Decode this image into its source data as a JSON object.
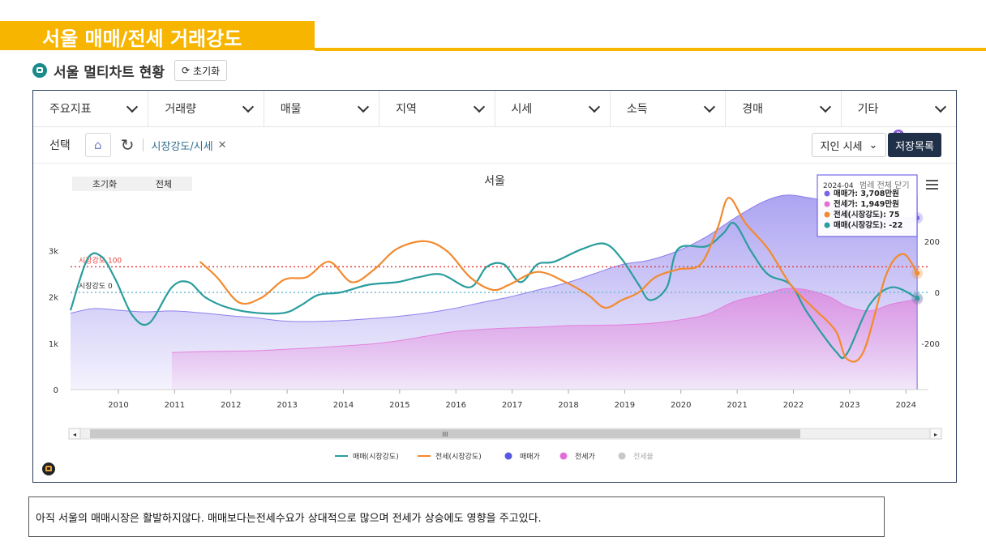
{
  "header": {
    "title": "서울 매매/전세 거래강도"
  },
  "subheader": {
    "title": "서울 멀티차트 현황",
    "reset_label": "초기화"
  },
  "filter_tabs": [
    "주요지표",
    "거래량",
    "매물",
    "지역",
    "시세",
    "소득",
    "경매",
    "기타"
  ],
  "toolbar": {
    "select_label": "선택",
    "active_filter": "시장강도/시세",
    "price_select": "지인 시세",
    "badge": "P",
    "save_label": "저장목록"
  },
  "chart_controls": {
    "reset": "초기화",
    "all": "전체"
  },
  "tooltip": {
    "date": "2024-04",
    "legend_toggle": "범례 전체 닫기",
    "items": [
      {
        "text": "매매가: 3,708만원",
        "color": "#7667e8"
      },
      {
        "text": "전세가: 1,949만원",
        "color": "#e36fd6"
      },
      {
        "text": "전세(시장강도): 75",
        "color": "#f28a2e"
      },
      {
        "text": "매매(시장강도): -22",
        "color": "#2a9d9d"
      }
    ]
  },
  "chart_data": {
    "type": "line",
    "title": "서울",
    "x_years": [
      "2010",
      "2011",
      "2012",
      "2013",
      "2014",
      "2015",
      "2016",
      "2017",
      "2018",
      "2019",
      "2020",
      "2021",
      "2022",
      "2023",
      "2024"
    ],
    "xlim": [
      2009.2,
      2024.45
    ],
    "left_axis": {
      "ticks": [
        "0",
        "1k",
        "2k",
        "3k"
      ],
      "ylim": [
        0,
        4200
      ]
    },
    "right_axis": {
      "ticks": [
        "200",
        "0",
        "-200"
      ],
      "ylim": [
        -380,
        380
      ]
    },
    "reference_lines": [
      {
        "label": "시장강도 100",
        "value": 100,
        "color": "#e84040"
      },
      {
        "label": "시장강도 0",
        "value": 0,
        "color": "#6fb8d4"
      }
    ],
    "series": [
      {
        "name": "매매가",
        "axis": "left",
        "kind": "area",
        "color": "#7667e8",
        "points": [
          [
            2009.2,
            1650
          ],
          [
            2009.6,
            1750
          ],
          [
            2010.0,
            1720
          ],
          [
            2010.5,
            1680
          ],
          [
            2011.0,
            1700
          ],
          [
            2011.5,
            1660
          ],
          [
            2012.0,
            1600
          ],
          [
            2012.5,
            1550
          ],
          [
            2013.0,
            1480
          ],
          [
            2013.5,
            1470
          ],
          [
            2014.0,
            1490
          ],
          [
            2014.5,
            1530
          ],
          [
            2015.0,
            1580
          ],
          [
            2015.5,
            1650
          ],
          [
            2016.0,
            1750
          ],
          [
            2016.5,
            1880
          ],
          [
            2017.0,
            2000
          ],
          [
            2017.5,
            2150
          ],
          [
            2018.0,
            2300
          ],
          [
            2018.5,
            2500
          ],
          [
            2019.0,
            2700
          ],
          [
            2019.5,
            2800
          ],
          [
            2020.0,
            3000
          ],
          [
            2020.5,
            3300
          ],
          [
            2021.0,
            3700
          ],
          [
            2021.5,
            4050
          ],
          [
            2021.9,
            4200
          ],
          [
            2022.3,
            4150
          ],
          [
            2022.7,
            4050
          ],
          [
            2023.0,
            3900
          ],
          [
            2023.4,
            3800
          ],
          [
            2023.8,
            3720
          ],
          [
            2024.25,
            3708
          ]
        ]
      },
      {
        "name": "전세가",
        "axis": "left",
        "kind": "area",
        "color": "#e36fd6",
        "points": [
          [
            2011.0,
            800
          ],
          [
            2011.5,
            820
          ],
          [
            2012.0,
            830
          ],
          [
            2012.5,
            840
          ],
          [
            2013.0,
            870
          ],
          [
            2013.5,
            900
          ],
          [
            2014.0,
            940
          ],
          [
            2014.5,
            980
          ],
          [
            2015.0,
            1050
          ],
          [
            2015.5,
            1150
          ],
          [
            2016.0,
            1250
          ],
          [
            2016.5,
            1300
          ],
          [
            2017.0,
            1330
          ],
          [
            2017.5,
            1350
          ],
          [
            2018.0,
            1380
          ],
          [
            2018.5,
            1390
          ],
          [
            2019.0,
            1400
          ],
          [
            2019.5,
            1430
          ],
          [
            2020.0,
            1500
          ],
          [
            2020.5,
            1620
          ],
          [
            2021.0,
            1900
          ],
          [
            2021.5,
            2050
          ],
          [
            2021.9,
            2180
          ],
          [
            2022.3,
            2150
          ],
          [
            2022.7,
            2000
          ],
          [
            2023.0,
            1800
          ],
          [
            2023.4,
            1700
          ],
          [
            2023.8,
            1850
          ],
          [
            2024.25,
            1949
          ]
        ]
      },
      {
        "name": "매매(시장강도)",
        "axis": "right",
        "kind": "line",
        "color": "#2a9d9d",
        "points": [
          [
            2009.2,
            -70
          ],
          [
            2009.5,
            130
          ],
          [
            2009.75,
            140
          ],
          [
            2010.0,
            50
          ],
          [
            2010.3,
            -90
          ],
          [
            2010.6,
            -120
          ],
          [
            2011.0,
            20
          ],
          [
            2011.3,
            40
          ],
          [
            2011.6,
            -20
          ],
          [
            2012.0,
            -60
          ],
          [
            2012.5,
            -80
          ],
          [
            2013.0,
            -80
          ],
          [
            2013.3,
            -50
          ],
          [
            2013.6,
            -10
          ],
          [
            2014.0,
            0
          ],
          [
            2014.5,
            30
          ],
          [
            2015.0,
            40
          ],
          [
            2015.4,
            60
          ],
          [
            2015.8,
            70
          ],
          [
            2016.3,
            20
          ],
          [
            2016.6,
            100
          ],
          [
            2016.9,
            110
          ],
          [
            2017.2,
            40
          ],
          [
            2017.5,
            110
          ],
          [
            2017.8,
            120
          ],
          [
            2018.3,
            170
          ],
          [
            2018.7,
            190
          ],
          [
            2019.0,
            130
          ],
          [
            2019.3,
            30
          ],
          [
            2019.5,
            -30
          ],
          [
            2019.8,
            20
          ],
          [
            2020.0,
            170
          ],
          [
            2020.5,
            180
          ],
          [
            2020.8,
            230
          ],
          [
            2021.0,
            270
          ],
          [
            2021.3,
            160
          ],
          [
            2021.6,
            70
          ],
          [
            2022.0,
            30
          ],
          [
            2022.3,
            -80
          ],
          [
            2022.8,
            -230
          ],
          [
            2023.0,
            -240
          ],
          [
            2023.4,
            -50
          ],
          [
            2023.8,
            20
          ],
          [
            2024.25,
            -22
          ]
        ]
      },
      {
        "name": "전세(시장강도)",
        "axis": "right",
        "kind": "line",
        "color": "#f28a2e",
        "points": [
          [
            2011.5,
            120
          ],
          [
            2011.8,
            60
          ],
          [
            2012.2,
            -40
          ],
          [
            2012.6,
            -20
          ],
          [
            2013.0,
            50
          ],
          [
            2013.4,
            60
          ],
          [
            2013.8,
            120
          ],
          [
            2014.2,
            40
          ],
          [
            2014.6,
            90
          ],
          [
            2015.0,
            170
          ],
          [
            2015.5,
            200
          ],
          [
            2015.9,
            160
          ],
          [
            2016.3,
            60
          ],
          [
            2016.7,
            10
          ],
          [
            2017.0,
            30
          ],
          [
            2017.5,
            80
          ],
          [
            2018.0,
            40
          ],
          [
            2018.4,
            -10
          ],
          [
            2018.7,
            -60
          ],
          [
            2019.0,
            -30
          ],
          [
            2019.3,
            0
          ],
          [
            2019.6,
            60
          ],
          [
            2020.0,
            90
          ],
          [
            2020.4,
            110
          ],
          [
            2020.7,
            250
          ],
          [
            2020.9,
            370
          ],
          [
            2021.2,
            270
          ],
          [
            2021.6,
            170
          ],
          [
            2022.0,
            30
          ],
          [
            2022.4,
            -60
          ],
          [
            2022.8,
            -150
          ],
          [
            2023.0,
            -260
          ],
          [
            2023.3,
            -230
          ],
          [
            2023.7,
            70
          ],
          [
            2024.0,
            150
          ],
          [
            2024.25,
            75
          ]
        ]
      }
    ],
    "legend": [
      {
        "label": "매매(시장강도)",
        "type": "line",
        "color": "#2a9d9d"
      },
      {
        "label": "전세(시장강도)",
        "type": "line",
        "color": "#f28a2e"
      },
      {
        "label": "매매가",
        "type": "dot",
        "color": "#5a57e0"
      },
      {
        "label": "전세가",
        "type": "dot",
        "color": "#e36fd6"
      },
      {
        "label": "전세율",
        "type": "dot",
        "color": "#c8c8c8"
      }
    ],
    "legend_position": "bottom"
  },
  "scrollbar": {
    "grip": "III"
  },
  "note": {
    "text": "아직 서울의 매매시장은 활발하지않다. 매매보다는전세수요가 상대적으로 많으며 전세가 상승에도 영향을 주고있다."
  }
}
